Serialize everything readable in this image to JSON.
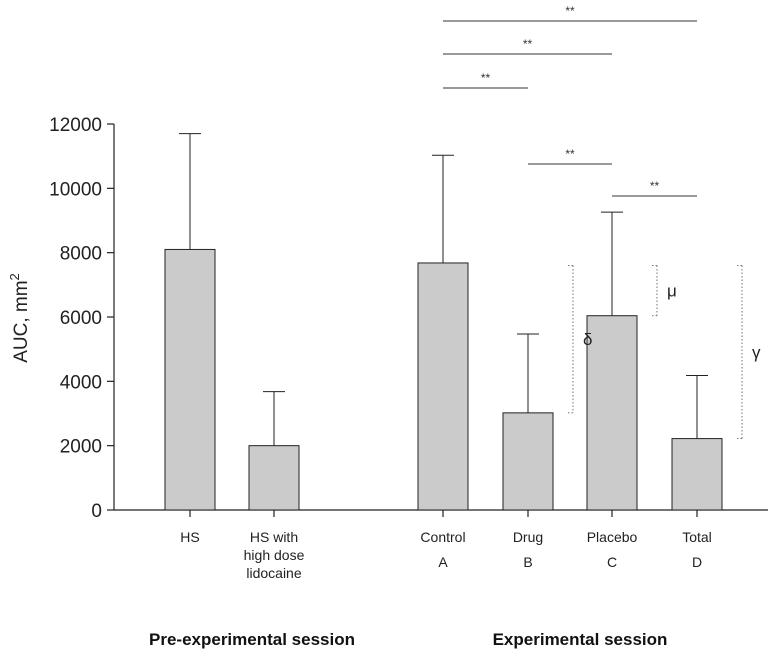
{
  "chart_data": {
    "type": "bar",
    "ylabel": "AUC, mm",
    "ylabel_sup": "2",
    "ylim": [
      0,
      12000
    ],
    "yticks": [
      0,
      2000,
      4000,
      6000,
      8000,
      10000,
      12000
    ],
    "yticks_labels": [
      "0",
      "2000",
      "4000",
      "6000",
      "8000",
      "10000",
      "12000"
    ],
    "bars": [
      {
        "label": [
          "HS"
        ],
        "letter": "",
        "value": 8100,
        "error": 11700
      },
      {
        "label": [
          "HS with",
          "high dose",
          "lidocaine"
        ],
        "letter": "",
        "value": 2000,
        "error": 3680
      },
      {
        "label": [
          "Control"
        ],
        "letter": "A",
        "value": 7680,
        "error": 11030
      },
      {
        "label": [
          "Drug"
        ],
        "letter": "B",
        "value": 3020,
        "error": 5470
      },
      {
        "label": [
          "Placebo"
        ],
        "letter": "C",
        "value": 6040,
        "error": 9260
      },
      {
        "label": [
          "Total"
        ],
        "letter": "D",
        "value": 2220,
        "error": 4180
      }
    ],
    "sessions": [
      "Pre-experimental session",
      "Experimental session"
    ],
    "significance": [
      {
        "from": 2,
        "to": 5,
        "label": "**"
      },
      {
        "from": 2,
        "to": 4,
        "label": "**"
      },
      {
        "from": 2,
        "to": 3,
        "label": "**"
      },
      {
        "from": 3,
        "to": 4,
        "label": "**"
      },
      {
        "from": 4,
        "to": 5,
        "label": "**"
      }
    ],
    "effect_brackets": [
      {
        "bar": 3,
        "top": 7600,
        "label": "δ"
      },
      {
        "bar": 4,
        "top": 7600,
        "label": "μ"
      },
      {
        "bar": 5,
        "top": 7600,
        "label": "γ"
      }
    ]
  }
}
